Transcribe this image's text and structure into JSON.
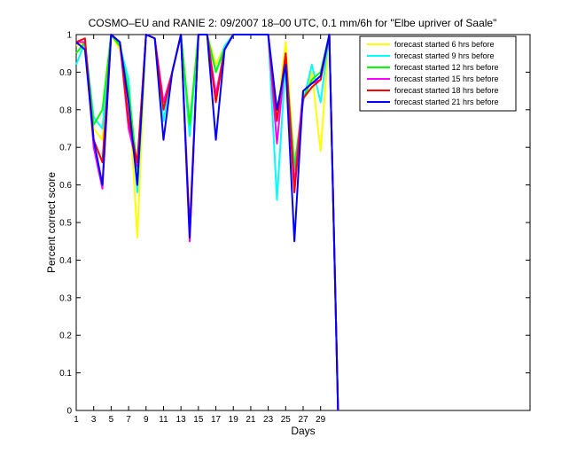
{
  "chart_data": {
    "type": "line",
    "title": "COSMO–EU and RANIE 2: 09/2007 18–00 UTC, 0.1 mm/6h for \"Elbe upriver of Saale\"",
    "xlabel": "Days",
    "ylabel": "Percent correct score",
    "xlim": [
      1,
      53
    ],
    "ylim": [
      0,
      1
    ],
    "x_ticks": [
      1,
      3,
      5,
      7,
      9,
      11,
      13,
      15,
      17,
      19,
      21,
      23,
      25,
      27,
      29
    ],
    "x_tick_labels": [
      "1",
      "3",
      "5",
      "7",
      "9",
      "11",
      "13",
      "15",
      "17",
      "19",
      "21",
      "23",
      "25",
      "27",
      "29"
    ],
    "y_ticks": [
      0,
      0.1,
      0.2,
      0.3,
      0.4,
      0.5,
      0.6,
      0.7,
      0.8,
      0.9,
      1
    ],
    "y_tick_labels": [
      "0",
      "0.1",
      "0.2",
      "0.3",
      "0.4",
      "0.5",
      "0.6",
      "0.7",
      "0.8",
      "0.9",
      "1"
    ],
    "grid": false,
    "legend_position": "top-right",
    "x": [
      1,
      2,
      3,
      4,
      5,
      6,
      7,
      8,
      9,
      10,
      11,
      12,
      13,
      14,
      15,
      16,
      17,
      18,
      19,
      20,
      21,
      22,
      23,
      24,
      25,
      26,
      27,
      28,
      29,
      30,
      31
    ],
    "series": [
      {
        "name": "forecast started 6 hrs before",
        "color": "#ffff00",
        "values": [
          0.97,
          0.98,
          0.75,
          0.72,
          1.0,
          0.96,
          0.86,
          0.46,
          1.0,
          0.99,
          0.82,
          0.9,
          1.0,
          0.75,
          1.0,
          1.0,
          0.92,
          0.97,
          1.0,
          1.0,
          1.0,
          1.0,
          1.0,
          0.78,
          0.98,
          0.66,
          0.82,
          0.9,
          0.69,
          1.0,
          0.0
        ]
      },
      {
        "name": "forecast started 9 hrs before",
        "color": "#00ffff",
        "values": [
          0.92,
          0.98,
          0.78,
          0.75,
          1.0,
          0.97,
          0.88,
          0.58,
          1.0,
          0.99,
          0.77,
          0.9,
          1.0,
          0.73,
          1.0,
          1.0,
          0.9,
          0.97,
          1.0,
          1.0,
          1.0,
          1.0,
          1.0,
          0.56,
          0.93,
          0.65,
          0.82,
          0.92,
          0.82,
          1.0,
          0.0
        ]
      },
      {
        "name": "forecast started 12 hrs before",
        "color": "#00ff00",
        "values": [
          0.95,
          0.98,
          0.76,
          0.8,
          1.0,
          0.97,
          0.85,
          0.64,
          1.0,
          0.99,
          0.8,
          0.9,
          1.0,
          0.76,
          1.0,
          1.0,
          0.9,
          0.96,
          1.0,
          1.0,
          1.0,
          1.0,
          1.0,
          0.77,
          0.95,
          0.64,
          0.83,
          0.88,
          0.9,
          1.0,
          0.0
        ]
      },
      {
        "name": "forecast started 15 hrs before",
        "color": "#ff00ff",
        "values": [
          0.98,
          0.98,
          0.7,
          0.59,
          1.0,
          0.98,
          0.75,
          0.65,
          1.0,
          0.99,
          0.82,
          0.9,
          1.0,
          0.45,
          1.0,
          1.0,
          0.84,
          0.96,
          1.0,
          1.0,
          1.0,
          1.0,
          1.0,
          0.71,
          0.95,
          0.6,
          0.85,
          0.87,
          0.88,
          1.0,
          0.0
        ]
      },
      {
        "name": "forecast started 18 hrs before",
        "color": "#ff0000",
        "values": [
          0.98,
          0.99,
          0.72,
          0.66,
          1.0,
          0.98,
          0.77,
          0.66,
          1.0,
          0.99,
          0.8,
          0.9,
          1.0,
          0.48,
          1.0,
          1.0,
          0.82,
          0.96,
          1.0,
          1.0,
          1.0,
          1.0,
          1.0,
          0.77,
          0.95,
          0.58,
          0.83,
          0.86,
          0.88,
          1.0,
          0.0
        ]
      },
      {
        "name": "forecast started 21 hrs before",
        "color": "#0000ff",
        "values": [
          0.98,
          0.96,
          0.72,
          0.6,
          1.0,
          0.98,
          0.82,
          0.6,
          1.0,
          0.99,
          0.72,
          0.9,
          1.0,
          0.46,
          1.0,
          1.0,
          0.72,
          0.96,
          1.0,
          1.0,
          1.0,
          1.0,
          1.0,
          0.8,
          0.92,
          0.45,
          0.85,
          0.87,
          0.89,
          1.0,
          0.0
        ]
      }
    ]
  }
}
